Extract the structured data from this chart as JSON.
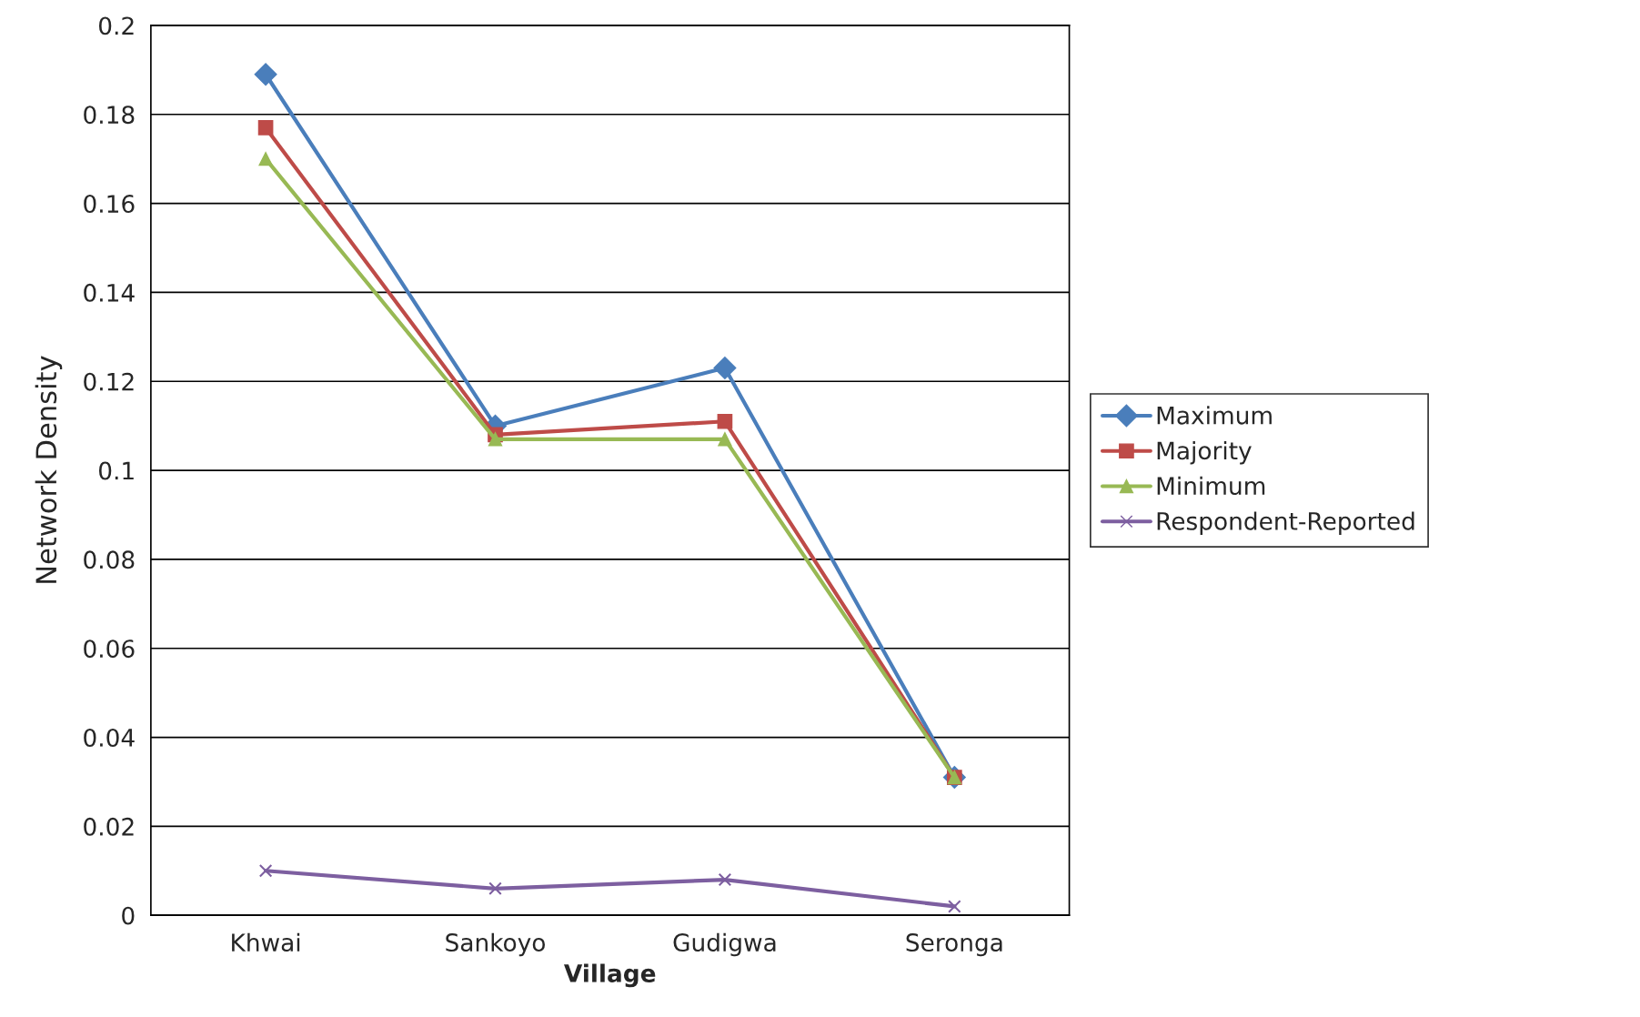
{
  "chart_data": {
    "type": "line",
    "xlabel": "Village",
    "ylabel": "Network Density",
    "categories": [
      "Khwai",
      "Sankoyo",
      "Gudigwa",
      "Seronga"
    ],
    "series": [
      {
        "name": "Maximum",
        "color": "#4a7ebb",
        "marker": "diamond",
        "values": [
          0.189,
          0.11,
          0.123,
          0.031
        ]
      },
      {
        "name": "Majority",
        "color": "#be4b48",
        "marker": "square",
        "values": [
          0.177,
          0.108,
          0.111,
          0.031
        ]
      },
      {
        "name": "Minimum",
        "color": "#98b954",
        "marker": "triangle",
        "values": [
          0.17,
          0.107,
          0.107,
          0.031
        ]
      },
      {
        "name": "Respondent-Reported",
        "color": "#7d5fa0",
        "marker": "cross",
        "values": [
          0.01,
          0.006,
          0.008,
          0.002
        ]
      }
    ],
    "ylim": [
      0,
      0.2
    ],
    "yticks": [
      0,
      0.02,
      0.04,
      0.06,
      0.08,
      0.1,
      0.12,
      0.14,
      0.16,
      0.18,
      0.2
    ],
    "grid": "y",
    "legend": "right"
  }
}
